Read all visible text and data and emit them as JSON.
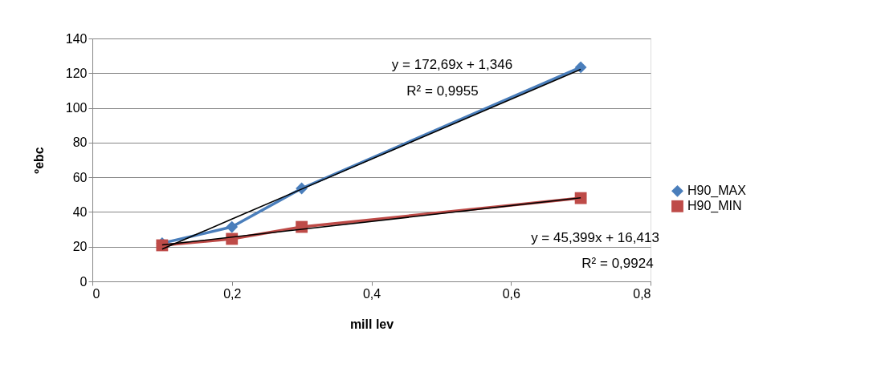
{
  "chart_data": {
    "type": "line",
    "xlabel": "mill lev",
    "ylabel": "ºebc",
    "x": [
      0.1,
      0.2,
      0.3,
      0.7
    ],
    "series": [
      {
        "name": "H90_MAX",
        "color": "#4a7ebb",
        "marker": "diamond",
        "values": [
          22,
          31.4,
          53.6,
          123.4
        ]
      },
      {
        "name": "H90_MIN",
        "color": "#be4b48",
        "marker": "square",
        "values": [
          20.8,
          24.5,
          31.4,
          48
        ]
      },
      {
        "type": "line",
        "color": "#000000",
        "values": [
          18.6,
          35.9,
          53.2,
          122.2
        ]
      },
      {
        "type": "line",
        "color": "#000000",
        "values": [
          21,
          25.5,
          30,
          48.2
        ]
      }
    ],
    "xlim": [
      0,
      0.8
    ],
    "xticks": [
      0,
      {
        "value": 0.2,
        "label": "0,2"
      },
      {
        "value": 0.4,
        "label": "0,4"
      },
      {
        "value": 0.6,
        "label": "0,6"
      },
      {
        "value": 0.8,
        "label": "0,8"
      }
    ],
    "ylim": [
      0,
      140
    ],
    "yticks": [
      0,
      20,
      40,
      60,
      80,
      100,
      120,
      140
    ],
    "grid": "y",
    "legend": "right",
    "line_style": "solid",
    "annotations": [
      "y = 172,69x + 1,346",
      "R² = 0,9955",
      "y = 45,399x + 16,413",
      "R² = 0,9924"
    ]
  }
}
